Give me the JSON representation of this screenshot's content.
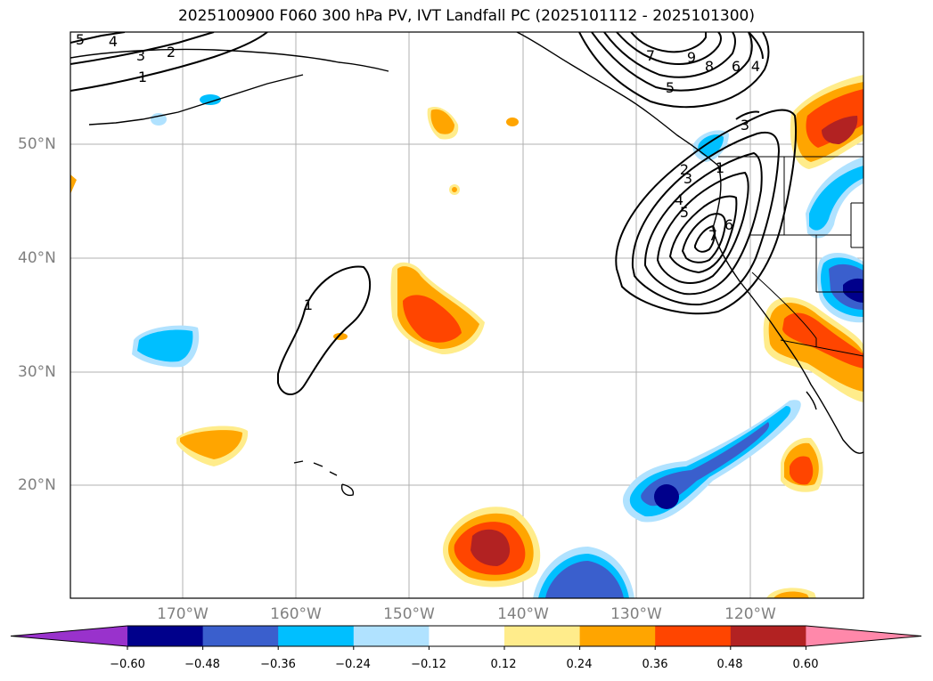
{
  "title": "2025100900 F060 300 hPa PV, IVT Landfall PC (2025101112 - 2025101300)",
  "lat_labels": [
    "50°N",
    "40°N",
    "30°N",
    "20°N"
  ],
  "lon_labels": [
    "170°W",
    "160°W",
    "150°W",
    "140°W",
    "130°W",
    "120°W"
  ],
  "colorbar": {
    "ticks": [
      "−0.60",
      "−0.48",
      "−0.36",
      "−0.24",
      "−0.12",
      "0.12",
      "0.24",
      "0.36",
      "0.48",
      "0.60"
    ],
    "colors": [
      "#9932cc",
      "#00008b",
      "#3a5fcd",
      "#00bfff",
      "#b0e2ff",
      "#ffffff",
      "#ffec8b",
      "#ffa500",
      "#ff4500",
      "#b22222",
      "#ff88aa"
    ]
  },
  "contour_labels": [
    "5",
    "4",
    "3",
    "2",
    "1",
    "9",
    "8",
    "6",
    "4",
    "7",
    "5",
    "3",
    "1",
    "2",
    "3",
    "4",
    "5",
    "6",
    "7",
    "1"
  ]
}
